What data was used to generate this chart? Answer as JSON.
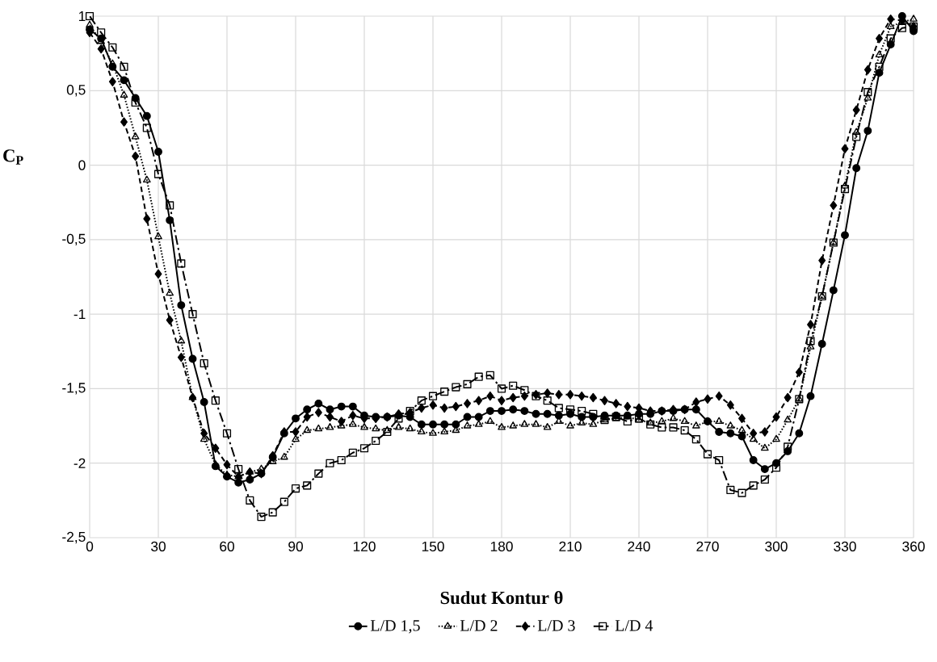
{
  "chart_data": {
    "type": "line",
    "xlabel": "Sudut Kontur θ",
    "ylabel": "C$_{P}$",
    "x": [
      0,
      5,
      10,
      15,
      20,
      25,
      30,
      35,
      40,
      45,
      50,
      55,
      60,
      65,
      70,
      75,
      80,
      85,
      90,
      95,
      100,
      105,
      110,
      115,
      120,
      125,
      130,
      135,
      140,
      145,
      150,
      155,
      160,
      165,
      170,
      175,
      180,
      185,
      190,
      195,
      200,
      205,
      210,
      215,
      220,
      225,
      230,
      235,
      240,
      245,
      250,
      255,
      260,
      265,
      270,
      275,
      280,
      285,
      290,
      295,
      300,
      305,
      310,
      315,
      320,
      325,
      330,
      335,
      340,
      345,
      350,
      355,
      360
    ],
    "series": [
      {
        "name": "L/D 1,5",
        "color": "#000000",
        "marker": "circle",
        "line_style": "solid",
        "values": [
          0.91,
          0.85,
          0.66,
          0.57,
          0.45,
          0.33,
          0.09,
          -0.37,
          -0.94,
          -1.3,
          -1.59,
          -2.02,
          -2.09,
          -2.13,
          -2.11,
          -2.07,
          -1.96,
          -1.8,
          -1.7,
          -1.64,
          -1.6,
          -1.64,
          -1.62,
          -1.62,
          -1.68,
          -1.69,
          -1.69,
          -1.68,
          -1.69,
          -1.74,
          -1.74,
          -1.74,
          -1.74,
          -1.69,
          -1.69,
          -1.65,
          -1.65,
          -1.64,
          -1.65,
          -1.67,
          -1.67,
          -1.68,
          -1.67,
          -1.69,
          -1.69,
          -1.68,
          -1.68,
          -1.68,
          -1.67,
          -1.67,
          -1.65,
          -1.65,
          -1.64,
          -1.64,
          -1.72,
          -1.79,
          -1.8,
          -1.82,
          -1.98,
          -2.04,
          -2.0,
          -1.92,
          -1.8,
          -1.55,
          -1.2,
          -0.84,
          -0.47,
          -0.02,
          0.23,
          0.62,
          0.81,
          1.0,
          0.9
        ]
      },
      {
        "name": "L/D 2",
        "color": "#000000",
        "marker": "triangle",
        "line_style": "dotted",
        "values": [
          0.94,
          0.83,
          0.68,
          0.47,
          0.19,
          -0.1,
          -0.48,
          -0.86,
          -1.18,
          -1.56,
          -1.84,
          -2.01,
          -2.08,
          -2.09,
          -2.06,
          -2.04,
          -1.99,
          -1.96,
          -1.84,
          -1.78,
          -1.77,
          -1.76,
          -1.75,
          -1.74,
          -1.76,
          -1.77,
          -1.78,
          -1.76,
          -1.77,
          -1.79,
          -1.8,
          -1.79,
          -1.78,
          -1.75,
          -1.74,
          -1.72,
          -1.76,
          -1.75,
          -1.74,
          -1.74,
          -1.76,
          -1.72,
          -1.75,
          -1.73,
          -1.74,
          -1.71,
          -1.7,
          -1.69,
          -1.71,
          -1.73,
          -1.72,
          -1.7,
          -1.72,
          -1.75,
          -1.72,
          -1.72,
          -1.75,
          -1.78,
          -1.84,
          -1.9,
          -1.84,
          -1.71,
          -1.57,
          -1.22,
          -0.88,
          -0.52,
          -0.14,
          0.22,
          0.45,
          0.74,
          0.93,
          0.96,
          0.98
        ]
      },
      {
        "name": "L/D 3",
        "color": "#000000",
        "marker": "diamond",
        "line_style": "dashed",
        "values": [
          0.89,
          0.78,
          0.56,
          0.29,
          0.06,
          -0.36,
          -0.73,
          -1.04,
          -1.29,
          -1.56,
          -1.8,
          -1.9,
          -2.01,
          -2.09,
          -2.06,
          -2.07,
          -1.95,
          -1.79,
          -1.79,
          -1.69,
          -1.66,
          -1.69,
          -1.72,
          -1.68,
          -1.7,
          -1.7,
          -1.69,
          -1.67,
          -1.66,
          -1.63,
          -1.61,
          -1.63,
          -1.62,
          -1.6,
          -1.58,
          -1.55,
          -1.58,
          -1.56,
          -1.55,
          -1.54,
          -1.53,
          -1.54,
          -1.54,
          -1.55,
          -1.56,
          -1.58,
          -1.6,
          -1.62,
          -1.63,
          -1.65,
          -1.65,
          -1.64,
          -1.64,
          -1.59,
          -1.57,
          -1.55,
          -1.61,
          -1.7,
          -1.8,
          -1.79,
          -1.69,
          -1.56,
          -1.39,
          -1.07,
          -0.64,
          -0.27,
          0.11,
          0.37,
          0.64,
          0.85,
          0.98,
          0.97,
          0.93
        ]
      },
      {
        "name": "L/D 4",
        "color": "#000000",
        "marker": "square",
        "line_style": "dashed",
        "values": [
          1.0,
          0.89,
          0.79,
          0.66,
          0.42,
          0.25,
          -0.06,
          -0.27,
          -0.66,
          -1.0,
          -1.33,
          -1.58,
          -1.8,
          -2.04,
          -2.25,
          -2.36,
          -2.33,
          -2.26,
          -2.17,
          -2.15,
          -2.07,
          -2.0,
          -1.98,
          -1.93,
          -1.9,
          -1.85,
          -1.79,
          -1.7,
          -1.65,
          -1.58,
          -1.55,
          -1.52,
          -1.49,
          -1.47,
          -1.42,
          -1.41,
          -1.5,
          -1.48,
          -1.51,
          -1.55,
          -1.58,
          -1.63,
          -1.64,
          -1.65,
          -1.67,
          -1.71,
          -1.69,
          -1.72,
          -1.7,
          -1.74,
          -1.76,
          -1.76,
          -1.78,
          -1.84,
          -1.94,
          -1.98,
          -2.18,
          -2.2,
          -2.15,
          -2.11,
          -2.03,
          -1.89,
          -1.57,
          -1.18,
          -0.88,
          -0.52,
          -0.16,
          0.19,
          0.49,
          0.66,
          0.85,
          0.92,
          0.93
        ]
      }
    ],
    "xlim": [
      0,
      360
    ],
    "xticks": [
      0,
      30,
      60,
      90,
      120,
      150,
      180,
      210,
      240,
      270,
      300,
      330,
      360
    ],
    "ylim": [
      -2.5,
      1
    ],
    "yticks": [
      {
        "value": -2.5,
        "label": "-2,5"
      },
      -2,
      {
        "value": -1.5,
        "label": "-1,5"
      },
      -1,
      {
        "value": -0.5,
        "label": "-0,5"
      },
      0,
      {
        "value": 0.5,
        "label": "0,5"
      },
      1
    ],
    "grid": true,
    "legend": "bottom"
  }
}
